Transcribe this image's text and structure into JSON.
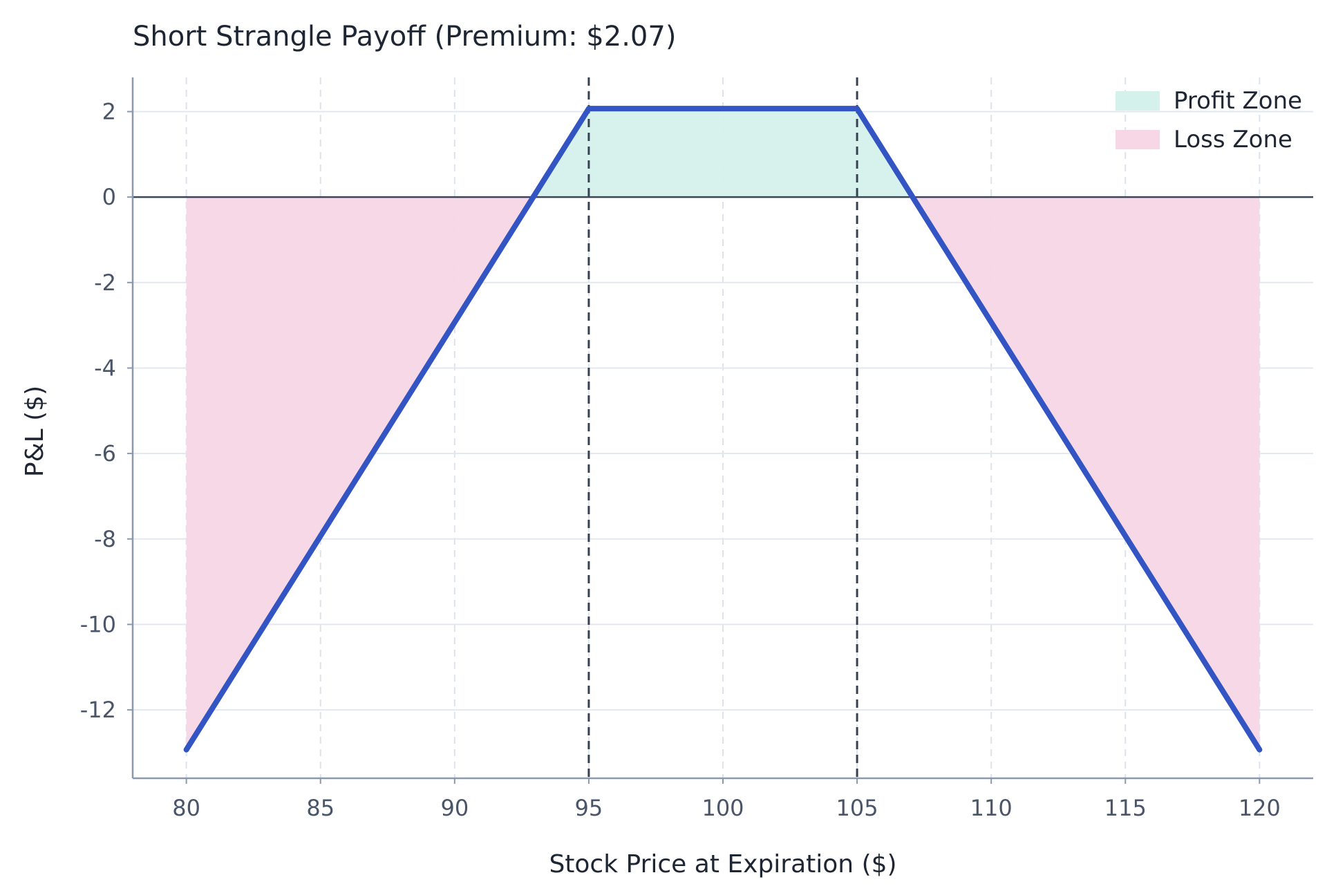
{
  "chart_data": {
    "type": "line",
    "title": "Short Strangle Payoff (Premium: $2.07)",
    "xlabel": "Stock Price at Expiration ($)",
    "ylabel": "P&L ($)",
    "xlim": [
      78,
      122
    ],
    "ylim": [
      -13.6,
      2.8
    ],
    "xticks": [
      80,
      85,
      90,
      95,
      100,
      105,
      110,
      115,
      120
    ],
    "xtick_labels": [
      "80",
      "85",
      "90",
      "95",
      "100",
      "105",
      "110",
      "115",
      "120"
    ],
    "yticks": [
      2,
      0,
      -2,
      -4,
      -6,
      -8,
      -10,
      -12
    ],
    "ytick_labels": [
      "2",
      "0",
      "-2",
      "-4",
      "-6",
      "-8",
      "-10",
      "-12"
    ],
    "grid": true,
    "strikes": [
      95,
      105
    ],
    "breakevens": [
      92.93,
      107.07
    ],
    "series": [
      {
        "x": [
          80,
          92.93,
          95,
          105,
          107.07,
          120
        ],
        "y": [
          -12.93,
          0,
          2.07,
          2.07,
          0,
          -12.93
        ],
        "color": "#3355c4"
      }
    ],
    "legend": {
      "position": "top-right",
      "entries": [
        {
          "label": "Profit Zone",
          "color": "#d5f1ec"
        },
        {
          "label": "Loss Zone",
          "color": "#f7d6e6"
        }
      ]
    }
  }
}
